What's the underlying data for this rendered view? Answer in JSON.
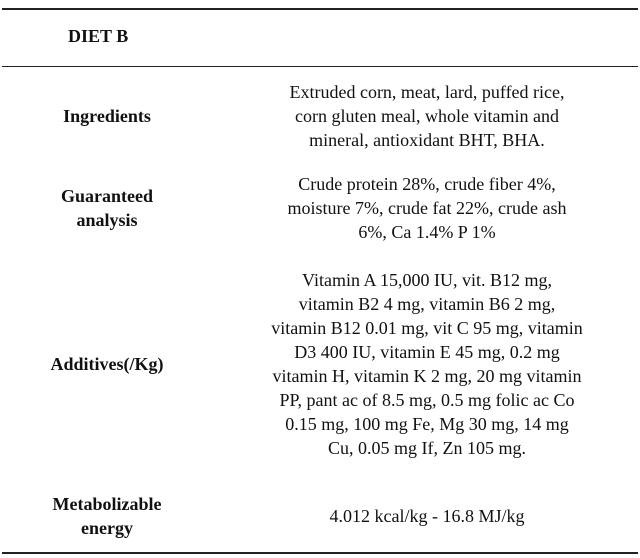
{
  "table": {
    "title": "DIET B",
    "rows": [
      {
        "label_lines": [
          "Ingredients"
        ],
        "value_lines": [
          "Extruded corn, meat, lard, puffed rice,",
          "corn gluten meal, whole vitamin and",
          "mineral, antioxidant BHT, BHA."
        ]
      },
      {
        "label_lines": [
          "Guaranteed",
          "analysis"
        ],
        "value_lines": [
          "Crude protein 28%, crude fiber 4%,",
          "moisture 7%, crude fat 22%, crude ash",
          "6%, Ca 1.4% P 1%"
        ]
      },
      {
        "label_lines": [
          "Additives(/Kg)"
        ],
        "value_lines": [
          "Vitamin A 15,000 IU, vit. B12 mg,",
          "vitamin B2 4 mg, vitamin B6 2 mg,",
          "vitamin B12 0.01 mg, vit C 95 mg, vitamin",
          "D3 400 IU, vitamin E 45 mg, 0.2 mg",
          "vitamin H, vitamin K 2 mg, 20 mg vitamin",
          "PP, pant ac of 8.5 mg, 0.5 mg folic ac Co",
          "0.15 mg, 100 mg Fe, Mg 30 mg, 14 mg",
          "Cu, 0.05 mg If, Zn 105 mg."
        ]
      },
      {
        "label_lines": [
          "Metabolizable",
          "energy"
        ],
        "value_lines": [
          "4.012 kcal/kg - 16.8 MJ/kg"
        ]
      }
    ]
  }
}
